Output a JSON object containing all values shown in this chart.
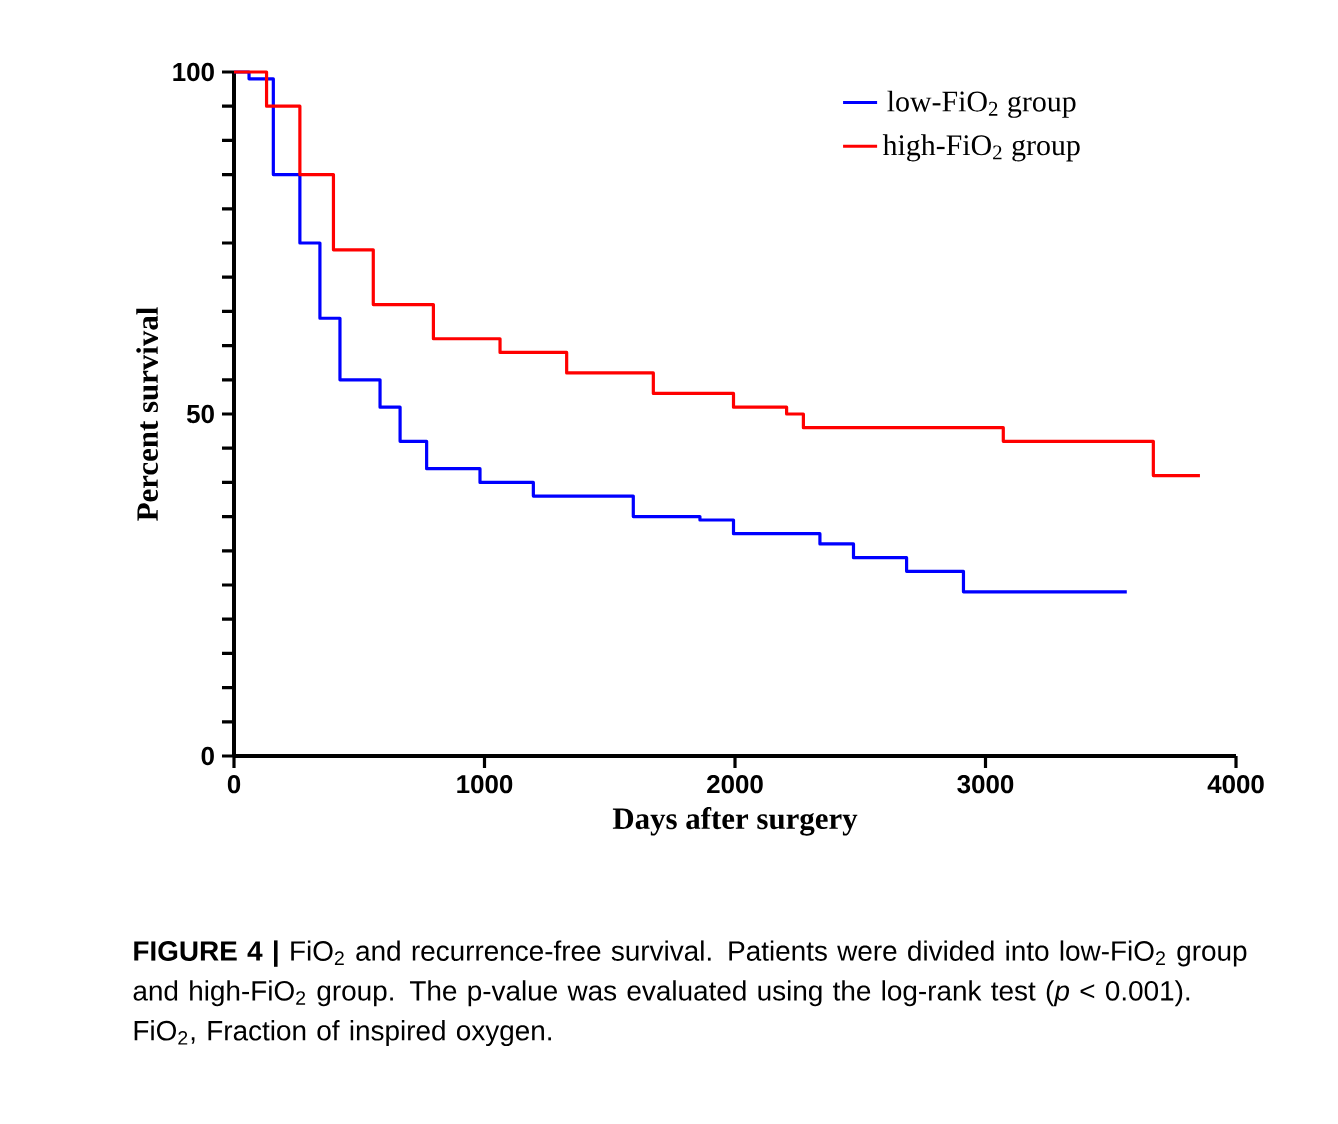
{
  "chart_data": {
    "type": "step",
    "xlabel": "Days after surgery",
    "ylabel": "Percent survival",
    "xlim": [
      0,
      4000
    ],
    "ylim": [
      0,
      100
    ],
    "xticks": [
      0,
      1000,
      2000,
      3000,
      4000
    ],
    "yticks": [
      0,
      {
        "value": 5,
        "label": null
      },
      {
        "value": 10,
        "label": null
      },
      {
        "value": 15,
        "label": null
      },
      {
        "value": 20,
        "label": null
      },
      {
        "value": 25,
        "label": null
      },
      {
        "value": 30,
        "label": null
      },
      {
        "value": 35,
        "label": null
      },
      {
        "value": 40,
        "label": null
      },
      {
        "value": 45,
        "label": null
      },
      50,
      {
        "value": 55,
        "label": null
      },
      {
        "value": 60,
        "label": null
      },
      {
        "value": 65,
        "label": null
      },
      {
        "value": 70,
        "label": null
      },
      {
        "value": 75,
        "label": null
      },
      {
        "value": 80,
        "label": null
      },
      {
        "value": 85,
        "label": null
      },
      {
        "value": 90,
        "label": null
      },
      {
        "value": 95,
        "label": null
      },
      100
    ],
    "legend": "top right",
    "series": [
      {
        "name": "low-FiO$_{2}$ group",
        "color": "#0000ff",
        "x": [
          0,
          60,
          157,
          263,
          343,
          423,
          583,
          663,
          769,
          982,
          1195,
          1594,
          1860,
          1994,
          2339,
          2473,
          2685,
          2912,
          3564
        ],
        "values": [
          100,
          99,
          85,
          75,
          64,
          55,
          51,
          46,
          42,
          40,
          38,
          35,
          34.5,
          32.5,
          31,
          29,
          27,
          24,
          24
        ]
      },
      {
        "name": "high-FiO$_{2}$ group",
        "color": "#ff0000",
        "x": [
          0,
          64,
          130,
          263,
          397,
          556,
          796,
          1062,
          1328,
          1674,
          1994,
          2206,
          2273,
          3071,
          3670,
          3856
        ],
        "values": [
          100,
          100,
          95,
          85,
          74,
          66,
          61,
          59,
          56,
          53,
          51,
          50,
          48,
          46,
          41,
          41
        ]
      }
    ],
    "annotations": [
      "**FIGURE 4 |** FiO$_{2}$ and recurrence-free survival. Patients were divided into low-FiO$_{2}$ group and high-FiO$_{2}$ group. The p-value was evaluated using the log-rank test (*p* < 0.001). FiO$_{2}$, Fraction of inspired oxygen."
    ]
  }
}
